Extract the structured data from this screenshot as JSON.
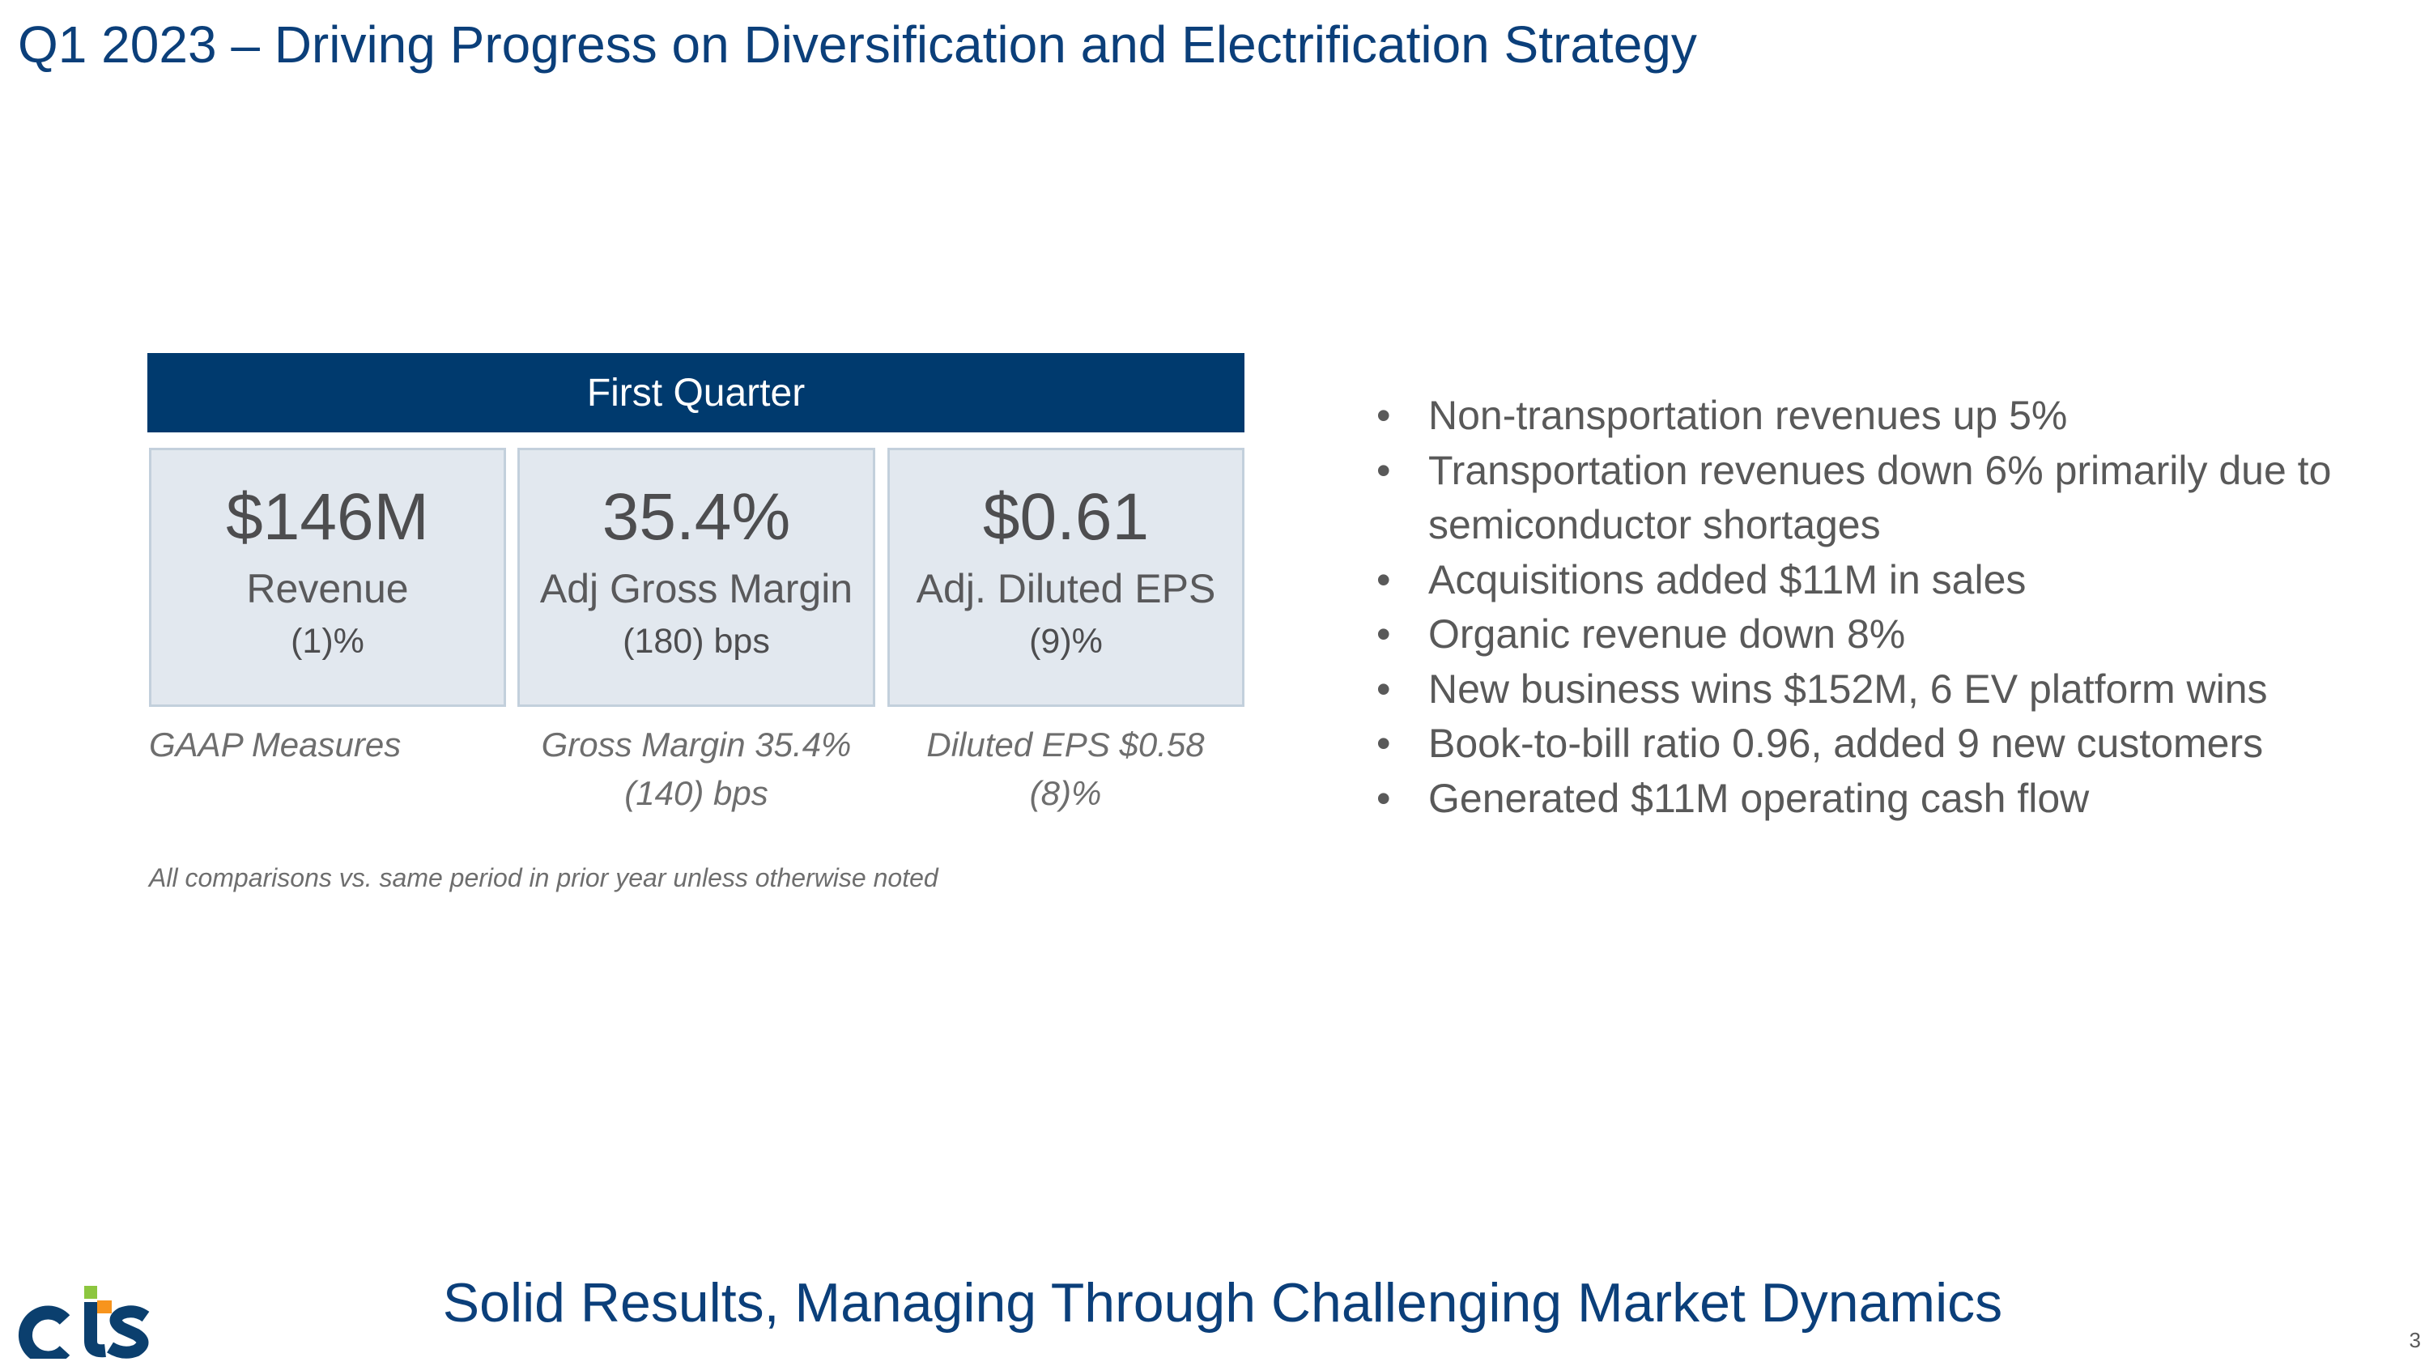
{
  "title": "Q1 2023 – Driving Progress on Diversification and Electrification Strategy",
  "table": {
    "header": "First Quarter",
    "cells": [
      {
        "value": "$146M",
        "label": "Revenue",
        "change": "(1)%"
      },
      {
        "value": "35.4%",
        "label": "Adj Gross Margin",
        "change": "(180) bps"
      },
      {
        "value": "$0.61",
        "label": "Adj. Diluted EPS",
        "change": "(9)%"
      }
    ],
    "gaap": {
      "label": "GAAP Measures",
      "margin_line1": "Gross Margin 35.4%",
      "margin_line2": "(140) bps",
      "eps_line1": "Diluted EPS $0.58",
      "eps_line2": "(8)%"
    },
    "note": "All comparisons vs. same period in prior year unless otherwise noted"
  },
  "bullets": [
    "Non-transportation revenues up 5%",
    "Transportation revenues down 6% primarily due to semiconductor shortages",
    "Acquisitions added $11M in sales",
    "Organic revenue down 8%",
    "New business wins $152M, 6 EV platform wins",
    "Book-to-bill ratio 0.96, added 9 new customers",
    "Generated $11M operating cash flow"
  ],
  "tagline": "Solid Results, Managing Through Challenging Market Dynamics",
  "page_number": "3",
  "logo": "cts",
  "colors": {
    "brand_navy": "#003a6e",
    "logo_green": "#8cc63f",
    "logo_orange": "#f7941d"
  }
}
